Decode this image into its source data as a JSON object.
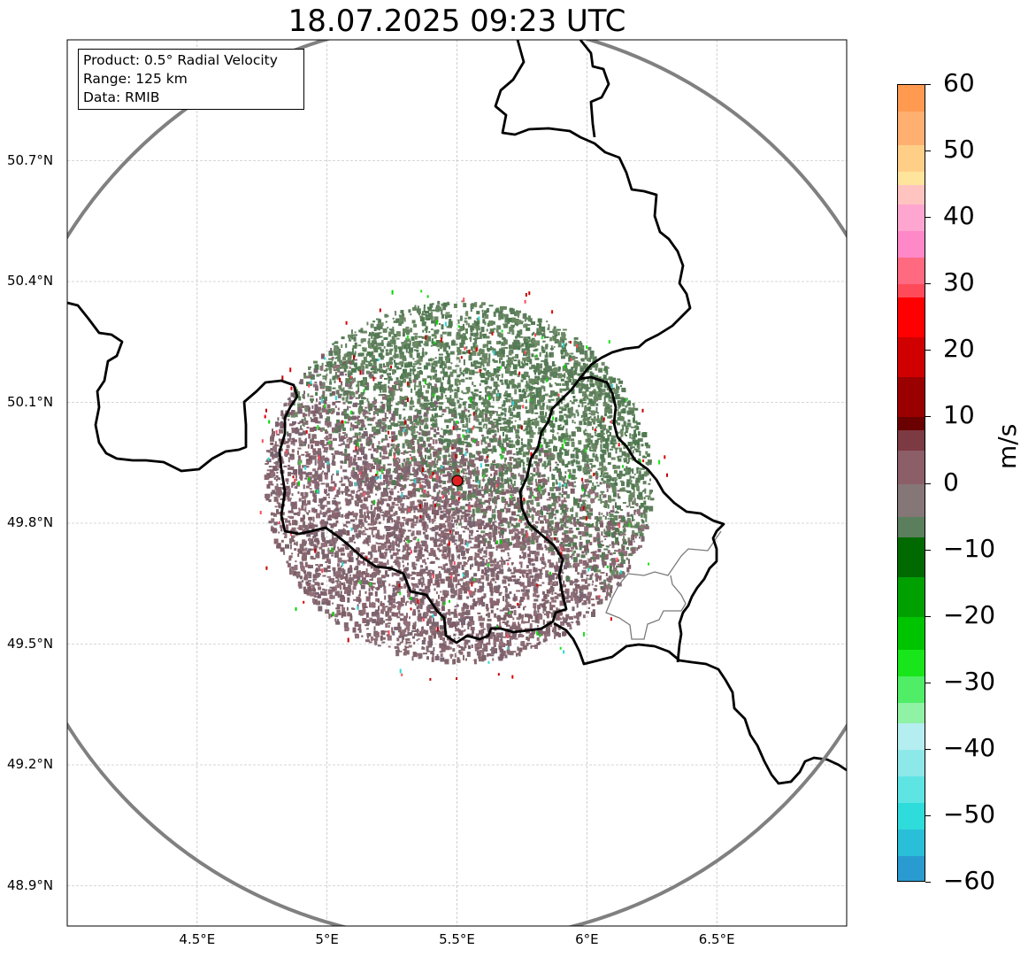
{
  "title": "18.07.2025 09:23 UTC",
  "info_box": {
    "product": "Product: 0.5° Radial Velocity",
    "range": "Range: 125 km",
    "data": "Data: RMIB"
  },
  "map": {
    "lon_range": [
      4.0,
      7.0
    ],
    "lat_range": [
      48.8,
      51.0
    ],
    "radar_site": {
      "lon": 5.5,
      "lat": 49.91
    },
    "range_km": 125,
    "lat_ticks": [
      "50.7°N",
      "50.4°N",
      "50.1°N",
      "49.8°N",
      "49.5°N",
      "49.2°N",
      "48.9°N"
    ],
    "lat_values": [
      50.7,
      50.4,
      50.1,
      49.8,
      49.5,
      49.2,
      48.9
    ],
    "lon_ticks": [
      "4.5°E",
      "5°E",
      "5.5°E",
      "6°E",
      "6.5°E"
    ],
    "lon_values": [
      4.5,
      5.0,
      5.5,
      6.0,
      6.5
    ],
    "colors": {
      "border": "#000000",
      "range_ring": "#808080",
      "grid": "#b0b0b0",
      "radar_marker": "#e02020",
      "echo_toward": "#5e7f5c",
      "echo_away": "#8a6670"
    }
  },
  "colorbar": {
    "label": "m/s",
    "vmin": -60,
    "vmax": 60,
    "ticks": [
      "60",
      "50",
      "40",
      "30",
      "20",
      "10",
      "0",
      "−10",
      "−20",
      "−30",
      "−40",
      "−50",
      "−60"
    ],
    "tick_values": [
      60,
      50,
      40,
      30,
      20,
      10,
      0,
      -10,
      -20,
      -30,
      -40,
      -50,
      -60
    ],
    "stops": [
      {
        "v": -60,
        "c": "#1f7fc6"
      },
      {
        "v": -56,
        "c": "#2a9bd0"
      },
      {
        "v": -52,
        "c": "#29bfd8"
      },
      {
        "v": -48,
        "c": "#2fdcdc"
      },
      {
        "v": -44,
        "c": "#5fe4e4"
      },
      {
        "v": -40,
        "c": "#8de8ea"
      },
      {
        "v": -36,
        "c": "#b5eef0"
      },
      {
        "v": -33,
        "c": "#8ff2a4"
      },
      {
        "v": -29,
        "c": "#4fee66"
      },
      {
        "v": -25,
        "c": "#18e61a"
      },
      {
        "v": -20,
        "c": "#00c400"
      },
      {
        "v": -14,
        "c": "#00a000"
      },
      {
        "v": -8,
        "c": "#006a00"
      },
      {
        "v": -5,
        "c": "#5b7f5d"
      },
      {
        "v": 0,
        "c": "#857677"
      },
      {
        "v": 5,
        "c": "#8c5e68"
      },
      {
        "v": 8,
        "c": "#7c3a42"
      },
      {
        "v": 10,
        "c": "#6a0000"
      },
      {
        "v": 16,
        "c": "#9a0000"
      },
      {
        "v": 22,
        "c": "#d00000"
      },
      {
        "v": 28,
        "c": "#ff0000"
      },
      {
        "v": 30,
        "c": "#ff4a5a"
      },
      {
        "v": 34,
        "c": "#ff6a80"
      },
      {
        "v": 38,
        "c": "#ff88c8"
      },
      {
        "v": 42,
        "c": "#ffa6d0"
      },
      {
        "v": 45,
        "c": "#ffc4c0"
      },
      {
        "v": 47,
        "c": "#ffe49c"
      },
      {
        "v": 51,
        "c": "#ffcf88"
      },
      {
        "v": 56,
        "c": "#ffb070"
      },
      {
        "v": 60,
        "c": "#ff9a50"
      }
    ]
  }
}
